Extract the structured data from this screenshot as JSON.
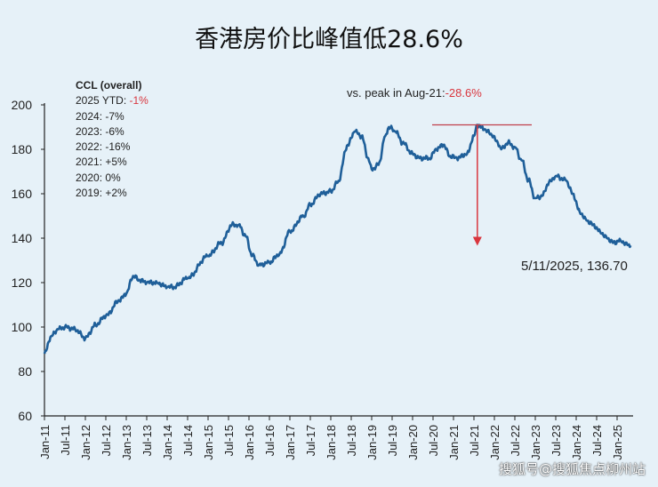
{
  "title": "香港房价比峰值低28.6%",
  "watermark": "搜狐号@搜狐焦点柳州站",
  "chart_data": {
    "type": "line",
    "title": "香港房价比峰值低28.6%",
    "series_name": "CCL (overall)",
    "xlabel": "",
    "ylabel": "",
    "ylim": [
      60,
      200
    ],
    "yticks": [
      60,
      80,
      100,
      120,
      140,
      160,
      180,
      200
    ],
    "xticks": [
      "Jan-11",
      "Jul-11",
      "Jan-12",
      "Jul-12",
      "Jan-13",
      "Jul-13",
      "Jan-14",
      "Jul-14",
      "Jan-15",
      "Jul-15",
      "Jan-16",
      "Jul-16",
      "Jan-17",
      "Jul-17",
      "Jan-18",
      "Jul-18",
      "Jan-19",
      "Jul-19",
      "Jan-20",
      "Jul-20",
      "Jan-21",
      "Jul-21",
      "Jan-22",
      "Jul-22",
      "Jan-23",
      "Jul-23",
      "Jan-24",
      "Jul-24",
      "Jan-25"
    ],
    "x_unit": "months since Jan-2011",
    "points": [
      [
        0,
        88
      ],
      [
        2,
        96
      ],
      [
        4,
        99
      ],
      [
        6,
        100
      ],
      [
        9,
        99
      ],
      [
        12,
        95
      ],
      [
        15,
        101
      ],
      [
        18,
        105
      ],
      [
        22,
        112
      ],
      [
        24,
        115
      ],
      [
        26,
        123
      ],
      [
        28,
        121
      ],
      [
        30,
        120
      ],
      [
        33,
        120
      ],
      [
        36,
        118
      ],
      [
        38,
        118
      ],
      [
        42,
        122
      ],
      [
        48,
        132
      ],
      [
        52,
        138
      ],
      [
        55,
        146
      ],
      [
        57,
        146
      ],
      [
        59,
        141
      ],
      [
        61,
        132
      ],
      [
        63,
        128
      ],
      [
        66,
        129
      ],
      [
        69,
        133
      ],
      [
        72,
        143
      ],
      [
        76,
        150
      ],
      [
        78,
        155
      ],
      [
        81,
        160
      ],
      [
        84,
        161
      ],
      [
        86,
        165
      ],
      [
        89,
        182
      ],
      [
        91,
        188
      ],
      [
        93,
        186
      ],
      [
        95,
        176
      ],
      [
        96,
        171
      ],
      [
        98,
        173
      ],
      [
        100,
        186
      ],
      [
        101,
        190
      ],
      [
        103,
        188
      ],
      [
        105,
        183
      ],
      [
        108,
        178
      ],
      [
        110,
        176
      ],
      [
        113,
        176
      ],
      [
        115,
        180
      ],
      [
        117,
        182
      ],
      [
        119,
        177
      ],
      [
        121,
        176
      ],
      [
        124,
        178
      ],
      [
        126,
        186
      ],
      [
        127,
        191
      ],
      [
        129,
        189
      ],
      [
        131,
        187
      ],
      [
        133,
        183
      ],
      [
        134,
        180
      ],
      [
        136,
        183
      ],
      [
        138,
        181
      ],
      [
        140,
        175
      ],
      [
        142,
        166
      ],
      [
        144,
        158
      ],
      [
        146,
        159
      ],
      [
        148,
        165
      ],
      [
        150,
        168
      ],
      [
        153,
        166
      ],
      [
        155,
        160
      ],
      [
        157,
        152
      ],
      [
        159,
        148
      ],
      [
        161,
        146
      ],
      [
        163,
        143
      ],
      [
        165,
        140
      ],
      [
        167,
        138
      ],
      [
        169,
        139
      ],
      [
        171,
        137
      ],
      [
        172,
        136.7
      ]
    ],
    "color": "#1f5f99",
    "legend": {
      "header": "CCL (overall)",
      "rows": [
        {
          "label": "2025 YTD: ",
          "value": "-1%",
          "highlight": true
        },
        {
          "label": "2024: ",
          "value": "-7%"
        },
        {
          "label": "2023: ",
          "value": "-6%"
        },
        {
          "label": "2022: ",
          "value": "-16%"
        },
        {
          "label": "2021: ",
          "value": "+5%"
        },
        {
          "label": "2020: ",
          "value": "0%"
        },
        {
          "label": "2019: ",
          "value": "+2%"
        }
      ]
    },
    "annotations": {
      "peak_label": "vs. peak in Aug-21:",
      "peak_value": "-28.6%",
      "peak_month": 127,
      "peak_level": 191,
      "arrow_to_level": 137,
      "last_label": "5/11/2025, 136.70"
    }
  }
}
